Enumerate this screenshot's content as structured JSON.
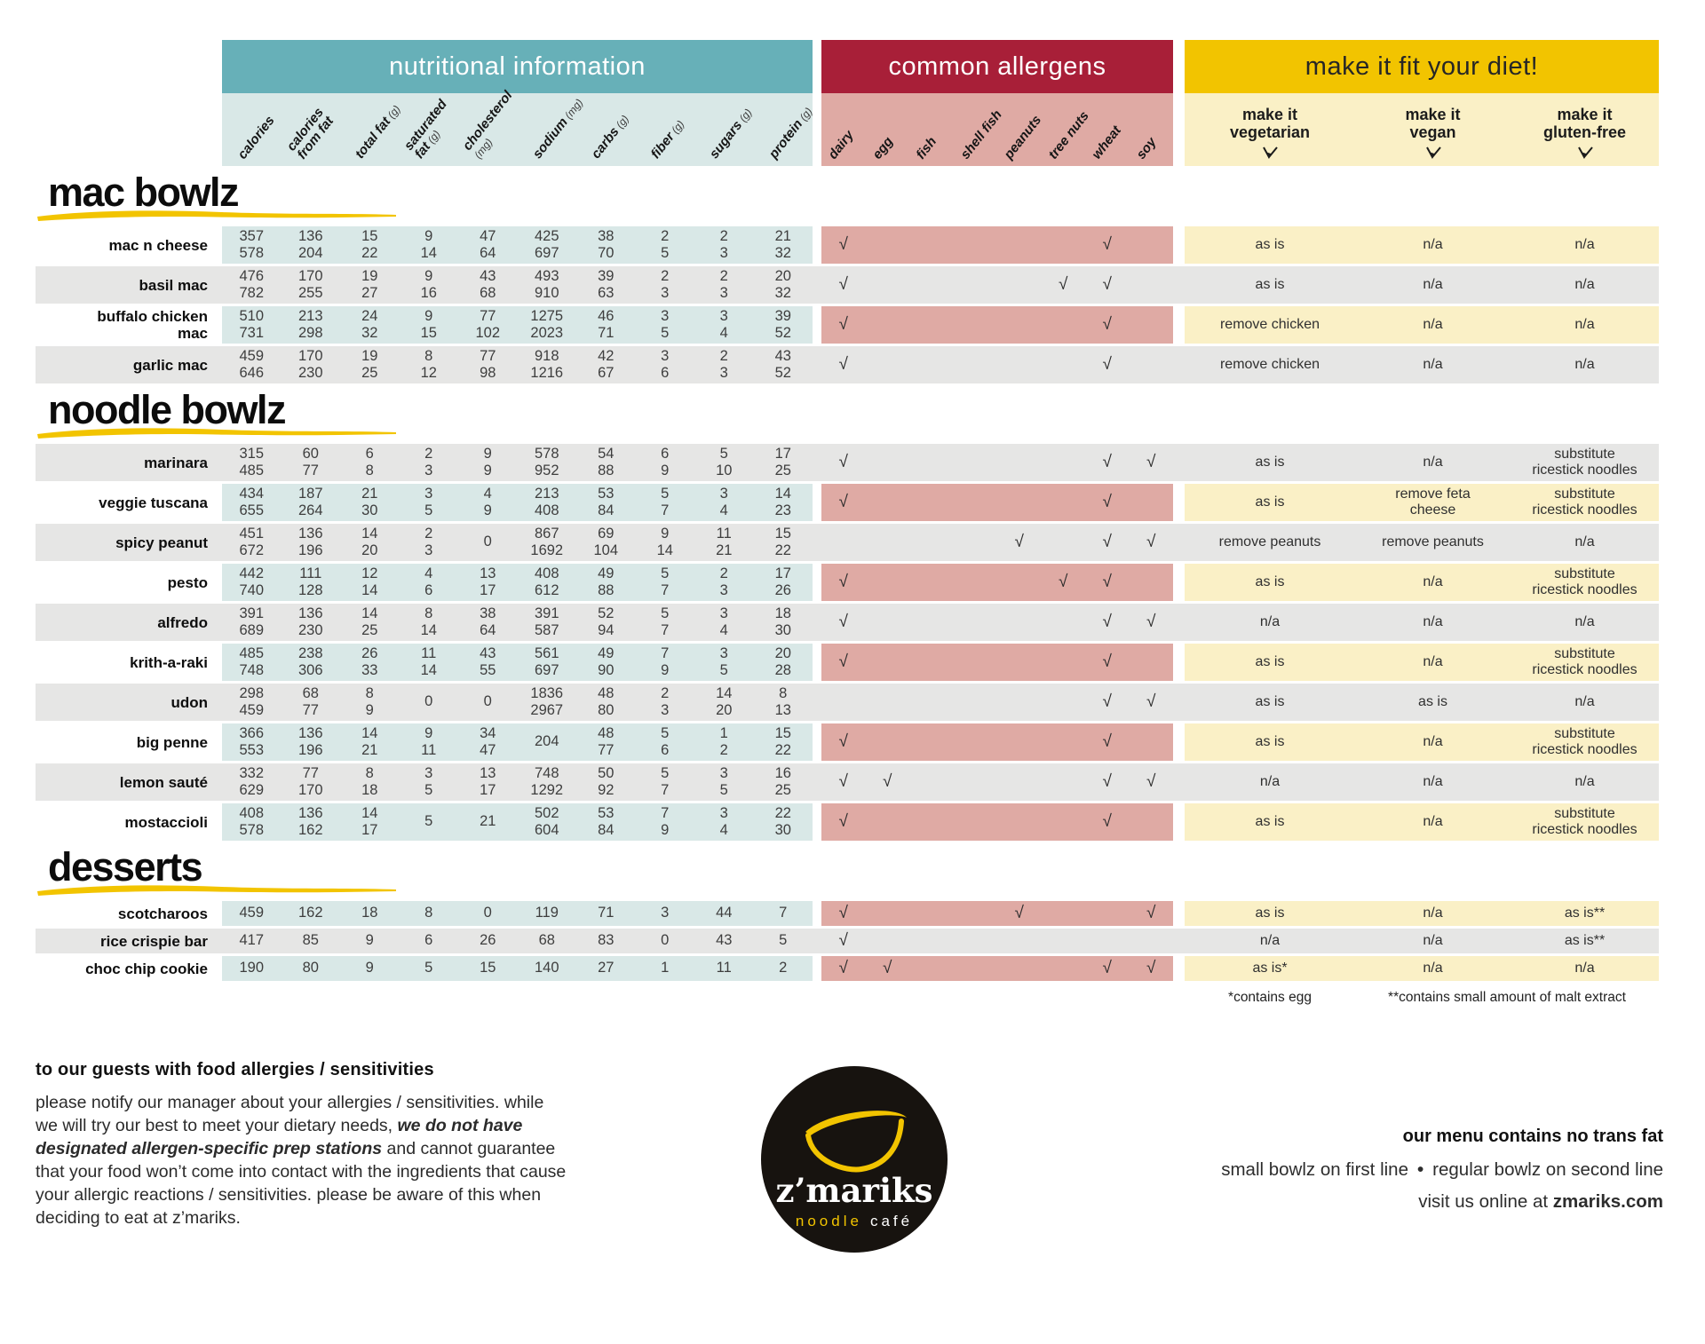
{
  "palette": {
    "teal": "#67b0b8",
    "tealL": "#d9e8e7",
    "red": "#a81f38",
    "pink": "#dfaaa4",
    "yellow": "#f2c400",
    "yelL": "#faf0c6",
    "gray": "#e6e6e5"
  },
  "header": {
    "nutrition_title": "nutritional information",
    "allergens_title": "common allergens",
    "diet_title": "make it fit your diet!",
    "nutrition_columns": [
      {
        "label": "calories",
        "unit": ""
      },
      {
        "label": "calories\nfrom fat",
        "unit": ""
      },
      {
        "label": "total fat",
        "unit": "(g)"
      },
      {
        "label": "saturated\nfat",
        "unit": "(g)"
      },
      {
        "label": "cholesterol",
        "unit": "(mg)",
        "unit_break": true
      },
      {
        "label": "sodium",
        "unit": "(mg)"
      },
      {
        "label": "carbs",
        "unit": "(g)"
      },
      {
        "label": "fiber",
        "unit": "(g)"
      },
      {
        "label": "sugars",
        "unit": "(g)"
      },
      {
        "label": "protein",
        "unit": "(g)"
      }
    ],
    "allergen_columns": [
      "dairy",
      "egg",
      "fish",
      "shell fish",
      "peanuts",
      "tree nuts",
      "wheat",
      "soy"
    ],
    "diet_columns": [
      {
        "l1": "make it",
        "l2": "vegetarian"
      },
      {
        "l1": "make it",
        "l2": "vegan"
      },
      {
        "l1": "make it",
        "l2": "gluten-free"
      }
    ]
  },
  "check_glyph": "√",
  "sections": [
    {
      "title": "mac bowlz",
      "items": [
        {
          "name": "mac n cheese",
          "shaded": false,
          "values": [
            "357\n578",
            "136\n204",
            "15\n22",
            "9\n14",
            "47\n64",
            "425\n697",
            "38\n70",
            "2\n5",
            "2\n3",
            "21\n32"
          ],
          "allergens": [
            1,
            0,
            0,
            0,
            0,
            0,
            1,
            0
          ],
          "diet": [
            "as is",
            "n/a",
            "n/a"
          ]
        },
        {
          "name": "basil mac",
          "shaded": true,
          "values": [
            "476\n782",
            "170\n255",
            "19\n27",
            "9\n16",
            "43\n68",
            "493\n910",
            "39\n63",
            "2\n3",
            "2\n3",
            "20\n32"
          ],
          "allergens": [
            1,
            0,
            0,
            0,
            0,
            1,
            1,
            0
          ],
          "diet": [
            "as is",
            "n/a",
            "n/a"
          ]
        },
        {
          "name": "buffalo chicken\nmac",
          "shaded": false,
          "values": [
            "510\n731",
            "213\n298",
            "24\n32",
            "9\n15",
            "77\n102",
            "1275\n2023",
            "46\n71",
            "3\n5",
            "3\n4",
            "39\n52"
          ],
          "allergens": [
            1,
            0,
            0,
            0,
            0,
            0,
            1,
            0
          ],
          "diet": [
            "remove chicken",
            "n/a",
            "n/a"
          ]
        },
        {
          "name": "garlic mac",
          "shaded": true,
          "values": [
            "459\n646",
            "170\n230",
            "19\n25",
            "8\n12",
            "77\n98",
            "918\n1216",
            "42\n67",
            "3\n6",
            "2\n3",
            "43\n52"
          ],
          "allergens": [
            1,
            0,
            0,
            0,
            0,
            0,
            1,
            0
          ],
          "diet": [
            "remove chicken",
            "n/a",
            "n/a"
          ]
        }
      ]
    },
    {
      "title": "noodle bowlz",
      "items": [
        {
          "name": "marinara",
          "shaded": true,
          "values": [
            "315\n485",
            "60\n77",
            "6\n8",
            "2\n3",
            "9\n9",
            "578\n952",
            "54\n88",
            "6\n9",
            "5\n10",
            "17\n25"
          ],
          "allergens": [
            1,
            0,
            0,
            0,
            0,
            0,
            1,
            1
          ],
          "diet": [
            "as is",
            "n/a",
            "substitute\nricestick noodles"
          ]
        },
        {
          "name": "veggie tuscana",
          "shaded": false,
          "values": [
            "434\n655",
            "187\n264",
            "21\n30",
            "3\n5",
            "4\n9",
            "213\n408",
            "53\n84",
            "5\n7",
            "3\n4",
            "14\n23"
          ],
          "allergens": [
            1,
            0,
            0,
            0,
            0,
            0,
            1,
            0
          ],
          "diet": [
            "as is",
            "remove feta\ncheese",
            "substitute\nricestick noodles"
          ]
        },
        {
          "name": "spicy peanut",
          "shaded": true,
          "values": [
            "451\n672",
            "136\n196",
            "14\n20",
            "2\n3",
            "0",
            "867\n1692",
            "69\n104",
            "9\n14",
            "11\n21",
            "15\n22"
          ],
          "allergens": [
            0,
            0,
            0,
            0,
            1,
            0,
            1,
            1
          ],
          "diet": [
            "remove peanuts",
            "remove peanuts",
            "n/a"
          ]
        },
        {
          "name": "pesto",
          "shaded": false,
          "values": [
            "442\n740",
            "111\n128",
            "12\n14",
            "4\n6",
            "13\n17",
            "408\n612",
            "49\n88",
            "5\n7",
            "2\n3",
            "17\n26"
          ],
          "allergens": [
            1,
            0,
            0,
            0,
            0,
            1,
            1,
            0
          ],
          "diet": [
            "as is",
            "n/a",
            "substitute\nricestick noodles"
          ]
        },
        {
          "name": "alfredo",
          "shaded": true,
          "values": [
            "391\n689",
            "136\n230",
            "14\n25",
            "8\n14",
            "38\n64",
            "391\n587",
            "52\n94",
            "5\n7",
            "3\n4",
            "18\n30"
          ],
          "allergens": [
            1,
            0,
            0,
            0,
            0,
            0,
            1,
            1
          ],
          "diet": [
            "n/a",
            "n/a",
            "n/a"
          ]
        },
        {
          "name": "krith-a-raki",
          "shaded": false,
          "values": [
            "485\n748",
            "238\n306",
            "26\n33",
            "11\n14",
            "43\n55",
            "561\n697",
            "49\n90",
            "7\n9",
            "3\n5",
            "20\n28"
          ],
          "allergens": [
            1,
            0,
            0,
            0,
            0,
            0,
            1,
            0
          ],
          "diet": [
            "as is",
            "n/a",
            "substitute\nricestick noodles"
          ]
        },
        {
          "name": "udon",
          "shaded": true,
          "values": [
            "298\n459",
            "68\n77",
            "8\n9",
            "0",
            "0",
            "1836\n2967",
            "48\n80",
            "2\n3",
            "14\n20",
            "8\n13"
          ],
          "allergens": [
            0,
            0,
            0,
            0,
            0,
            0,
            1,
            1
          ],
          "diet": [
            "as is",
            "as is",
            "n/a"
          ]
        },
        {
          "name": "big penne",
          "shaded": false,
          "values": [
            "366\n553",
            "136\n196",
            "14\n21",
            "9\n11",
            "34\n47",
            "204",
            "48\n77",
            "5\n6",
            "1\n2",
            "15\n22"
          ],
          "allergens": [
            1,
            0,
            0,
            0,
            0,
            0,
            1,
            0
          ],
          "diet": [
            "as is",
            "n/a",
            "substitute\nricestick noodles"
          ]
        },
        {
          "name": "lemon sauté",
          "shaded": true,
          "values": [
            "332\n629",
            "77\n170",
            "8\n18",
            "3\n5",
            "13\n17",
            "748\n1292",
            "50\n92",
            "5\n7",
            "3\n5",
            "16\n25"
          ],
          "allergens": [
            1,
            1,
            0,
            0,
            0,
            0,
            1,
            1
          ],
          "diet": [
            "n/a",
            "n/a",
            "n/a"
          ]
        },
        {
          "name": "mostaccioli",
          "shaded": false,
          "values": [
            "408\n578",
            "136\n162",
            "14\n17",
            "5",
            "21",
            "502\n604",
            "53\n84",
            "7\n9",
            "3\n4",
            "22\n30"
          ],
          "allergens": [
            1,
            0,
            0,
            0,
            0,
            0,
            1,
            0
          ],
          "diet": [
            "as is",
            "n/a",
            "substitute\nricestick noodles"
          ]
        }
      ]
    },
    {
      "title": "desserts",
      "items": [
        {
          "name": "scotcharoos",
          "shaded": false,
          "values": [
            "459",
            "162",
            "18",
            "8",
            "0",
            "119",
            "71",
            "3",
            "44",
            "7"
          ],
          "allergens": [
            1,
            0,
            0,
            0,
            1,
            0,
            0,
            1
          ],
          "diet": [
            "as is",
            "n/a",
            "as is**"
          ]
        },
        {
          "name": "rice crispie bar",
          "shaded": true,
          "values": [
            "417",
            "85",
            "9",
            "6",
            "26",
            "68",
            "83",
            "0",
            "43",
            "5"
          ],
          "allergens": [
            1,
            0,
            0,
            0,
            0,
            0,
            0,
            0
          ],
          "diet": [
            "n/a",
            "n/a",
            "as is**"
          ]
        },
        {
          "name": "choc chip cookie",
          "shaded": false,
          "values": [
            "190",
            "80",
            "9",
            "5",
            "15",
            "140",
            "27",
            "1",
            "11",
            "2"
          ],
          "allergens": [
            1,
            1,
            0,
            0,
            0,
            0,
            1,
            1
          ],
          "diet": [
            "as is*",
            "n/a",
            "n/a"
          ]
        }
      ]
    }
  ],
  "footnotes": {
    "veg": "*contains egg",
    "gluten": "**contains small amount of malt extract"
  },
  "footer": {
    "allergy_heading": "to our guests with food allergies / sensitivities",
    "allergy_body_pre": "please notify our manager about your allergies / sensitivities. while we will try our best to meet your dietary needs, ",
    "allergy_body_bold": "we do not have designated allergen-specific prep stations",
    "allergy_body_post": " and cannot guarantee that your food won’t come into contact with the ingredients that cause your allergic reactions / sensitivities. please be aware of this when deciding to eat at z’mariks.",
    "logo": {
      "name": "z’mariks",
      "subtitle_1": "noodle",
      "subtitle_2": "café"
    },
    "right": {
      "line1": "our menu contains no trans fat",
      "line2_left": "small bowlz on first line",
      "bullet": "•",
      "line2_right": "regular bowlz on second line",
      "line3_pre": "visit us online at ",
      "line3_bold": "zmariks.com"
    }
  }
}
